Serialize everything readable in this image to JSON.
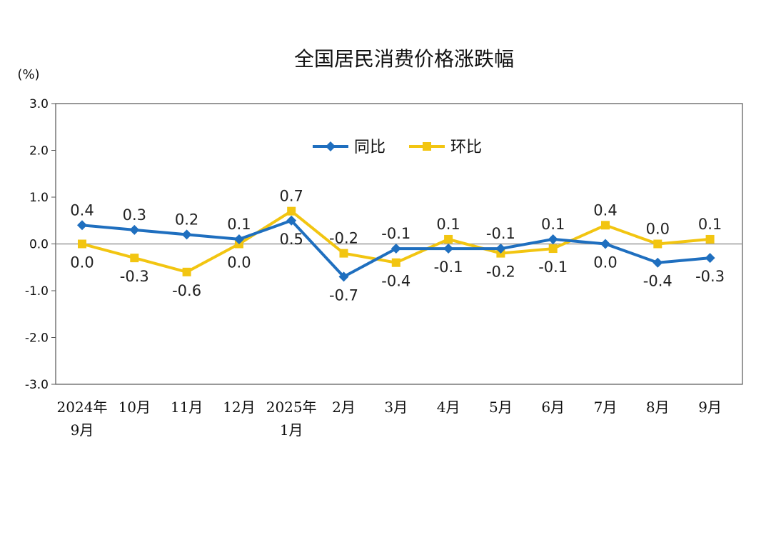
{
  "chart_data": {
    "type": "line",
    "title": "全国居民消费价格涨跌幅",
    "unit_label": "(%)",
    "categories": [
      [
        "2024年",
        "9月"
      ],
      [
        "10月"
      ],
      [
        "11月"
      ],
      [
        "12月"
      ],
      [
        "2025年",
        "1月"
      ],
      [
        "2月"
      ],
      [
        "3月"
      ],
      [
        "4月"
      ],
      [
        "5月"
      ],
      [
        "6月"
      ],
      [
        "7月"
      ],
      [
        "8月"
      ],
      [
        "9月"
      ]
    ],
    "ylim": [
      -3.0,
      3.0
    ],
    "yticks": [
      3.0,
      2.0,
      1.0,
      0.0,
      -1.0,
      -2.0,
      -3.0
    ],
    "ytick_labels": [
      "3.0",
      "2.0",
      "1.0",
      "0.0",
      "-1.0",
      "-2.0",
      "-3.0"
    ],
    "grid": false,
    "legend_position": "top-center",
    "series": [
      {
        "name": "同比",
        "color": "#1f6fbf",
        "marker": "diamond",
        "values": [
          0.4,
          0.3,
          0.2,
          0.1,
          0.5,
          -0.7,
          -0.1,
          -0.1,
          -0.1,
          0.1,
          0.0,
          -0.4,
          -0.3
        ],
        "labels": [
          "0.4",
          "0.3",
          "0.2",
          "0.1",
          "0.5",
          "-0.7",
          "-0.1",
          "-0.1",
          "-0.1",
          "0.1",
          "0.0",
          "-0.4",
          "-0.3"
        ],
        "label_side": [
          "above",
          "above",
          "above",
          "above",
          "below",
          "below",
          "above",
          "below",
          "above",
          "above",
          "below",
          "below",
          "below"
        ]
      },
      {
        "name": "环比",
        "color": "#f2c511",
        "marker": "square",
        "values": [
          0.0,
          -0.3,
          -0.6,
          0.0,
          0.7,
          -0.2,
          -0.4,
          0.1,
          -0.2,
          -0.1,
          0.4,
          0.0,
          0.1
        ],
        "labels": [
          "0.0",
          "-0.3",
          "-0.6",
          "0.0",
          "0.7",
          "-0.2",
          "-0.4",
          "0.1",
          "-0.2",
          "-0.1",
          "0.4",
          "0.0",
          "0.1"
        ],
        "label_side": [
          "below",
          "below",
          "below",
          "below",
          "above",
          "above",
          "below",
          "above",
          "below",
          "below",
          "above",
          "above",
          "above"
        ]
      }
    ]
  }
}
